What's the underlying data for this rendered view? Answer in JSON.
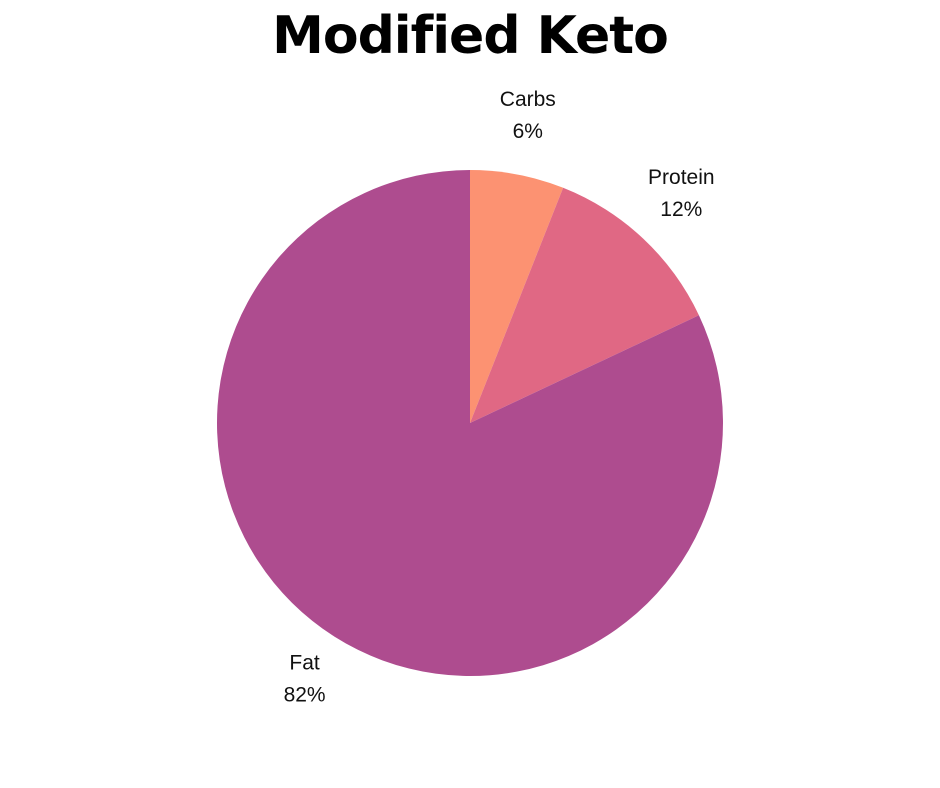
{
  "chart_data": {
    "type": "pie",
    "title": "Modified Keto",
    "slices": [
      {
        "label": "Carbs",
        "value": 6,
        "value_label": "6%",
        "color": "#fc9272"
      },
      {
        "label": "Protein",
        "value": 12,
        "value_label": "12%",
        "color": "#e06884"
      },
      {
        "label": "Fat",
        "value": 82,
        "value_label": "82%",
        "color": "#ae4c8f"
      }
    ],
    "start_angle": "12 o'clock",
    "direction": "clockwise",
    "legend": "none",
    "labels": "outside"
  }
}
